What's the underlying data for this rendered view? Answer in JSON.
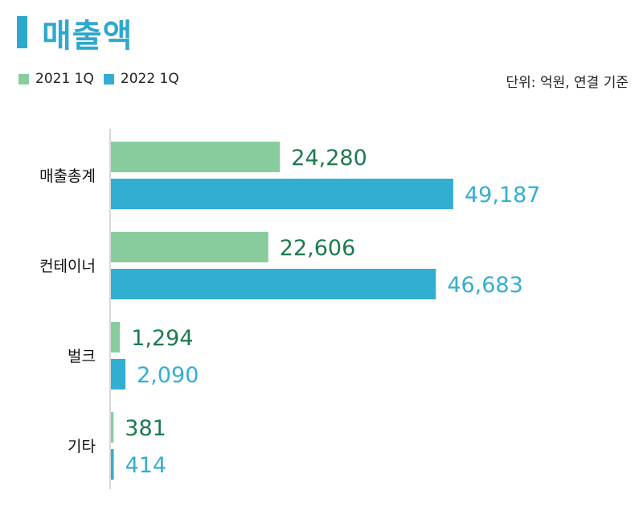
{
  "header": {
    "title": "매출액"
  },
  "unit_note": "단위: 억원, 연결 기준",
  "colors": {
    "accent": "#2ea8cf",
    "series_2021": "#88cc9e",
    "series_2022": "#33aed3",
    "label_2021": "#1c7a4e",
    "label_2022": "#33aed3"
  },
  "chart_data": {
    "type": "bar",
    "orientation": "horizontal",
    "title": "매출액",
    "categories": [
      "매출총계",
      "컨테이너",
      "벌크",
      "기타"
    ],
    "series": [
      {
        "name": "2021 1Q",
        "values": [
          24280,
          22606,
          1294,
          381
        ],
        "labels": [
          "24,280",
          "22,606",
          "1,294",
          "381"
        ]
      },
      {
        "name": "2022 1Q",
        "values": [
          49187,
          46683,
          2090,
          414
        ],
        "labels": [
          "49,187",
          "46,683",
          "2,090",
          "414"
        ]
      }
    ],
    "xlim": [
      0,
      60000
    ],
    "grid": false,
    "legend": "top-left"
  }
}
